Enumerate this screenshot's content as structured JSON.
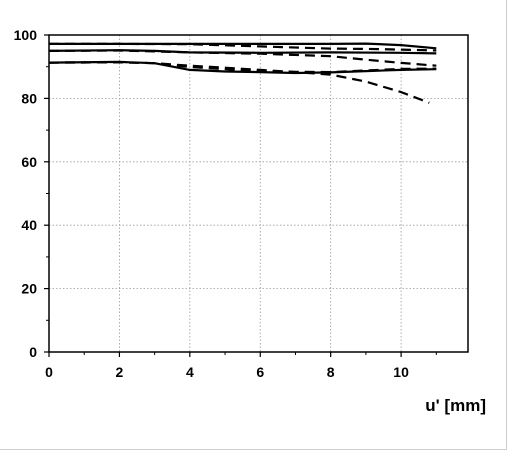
{
  "chart_data": {
    "type": "line",
    "title": "",
    "xlabel": "u' [mm]",
    "ylabel": "",
    "xlim": [
      0,
      11.9
    ],
    "ylim": [
      0,
      100
    ],
    "xticks": [
      0,
      2,
      4,
      6,
      8,
      10
    ],
    "yticks": [
      0,
      20,
      40,
      60,
      80,
      100
    ],
    "xtick_labels": [
      "0",
      "2",
      "4",
      "6",
      "8",
      "10"
    ],
    "ytick_labels": [
      "0",
      "20",
      "40",
      "60",
      "80",
      "100"
    ],
    "grid": true,
    "legend": "none",
    "colors": {
      "line": "#000000",
      "grid": "#9a9a9a",
      "frame_border": "#cfcfcf"
    },
    "series": [
      {
        "style": "solid",
        "x": [
          0,
          2,
          4,
          6,
          8,
          9,
          10,
          11
        ],
        "y": [
          97.2,
          97.2,
          97.2,
          97.2,
          97.2,
          97.3,
          96.8,
          95.8
        ]
      },
      {
        "style": "dashed",
        "x": [
          0,
          2,
          4,
          6,
          8,
          9,
          10,
          11
        ],
        "y": [
          97.2,
          97.2,
          97.1,
          96.4,
          95.7,
          95.6,
          95.4,
          95.1
        ]
      },
      {
        "style": "solid",
        "x": [
          0,
          2,
          3,
          4,
          6,
          8,
          10,
          11
        ],
        "y": [
          95.0,
          95.2,
          95.0,
          94.5,
          94.4,
          94.5,
          94.4,
          94.2
        ]
      },
      {
        "style": "dashed",
        "x": [
          0,
          2,
          4,
          6,
          8,
          9,
          10,
          11
        ],
        "y": [
          95.0,
          95.1,
          94.5,
          94.1,
          93.3,
          92.2,
          91.2,
          90.3
        ]
      },
      {
        "style": "solid",
        "x": [
          0,
          2,
          3,
          4,
          5,
          6,
          7,
          8,
          9,
          10,
          11
        ],
        "y": [
          91.3,
          91.5,
          91.1,
          89.0,
          88.5,
          88.3,
          88.0,
          88.2,
          88.6,
          89.0,
          89.2
        ]
      },
      {
        "style": "dashed",
        "x": [
          0,
          2,
          3,
          4,
          5,
          6,
          7,
          8,
          9,
          10,
          10.8
        ],
        "y": [
          91.3,
          91.4,
          91.1,
          90.3,
          89.7,
          89.0,
          88.3,
          87.5,
          85.3,
          82.0,
          78.6
        ]
      },
      {
        "style": "dashed",
        "x": [
          0,
          2,
          3,
          4,
          5,
          6,
          7,
          8,
          9,
          10,
          11
        ],
        "y": [
          91.3,
          91.4,
          91.1,
          89.9,
          89.2,
          88.7,
          88.4,
          88.3,
          88.8,
          89.3,
          89.4
        ]
      }
    ]
  }
}
